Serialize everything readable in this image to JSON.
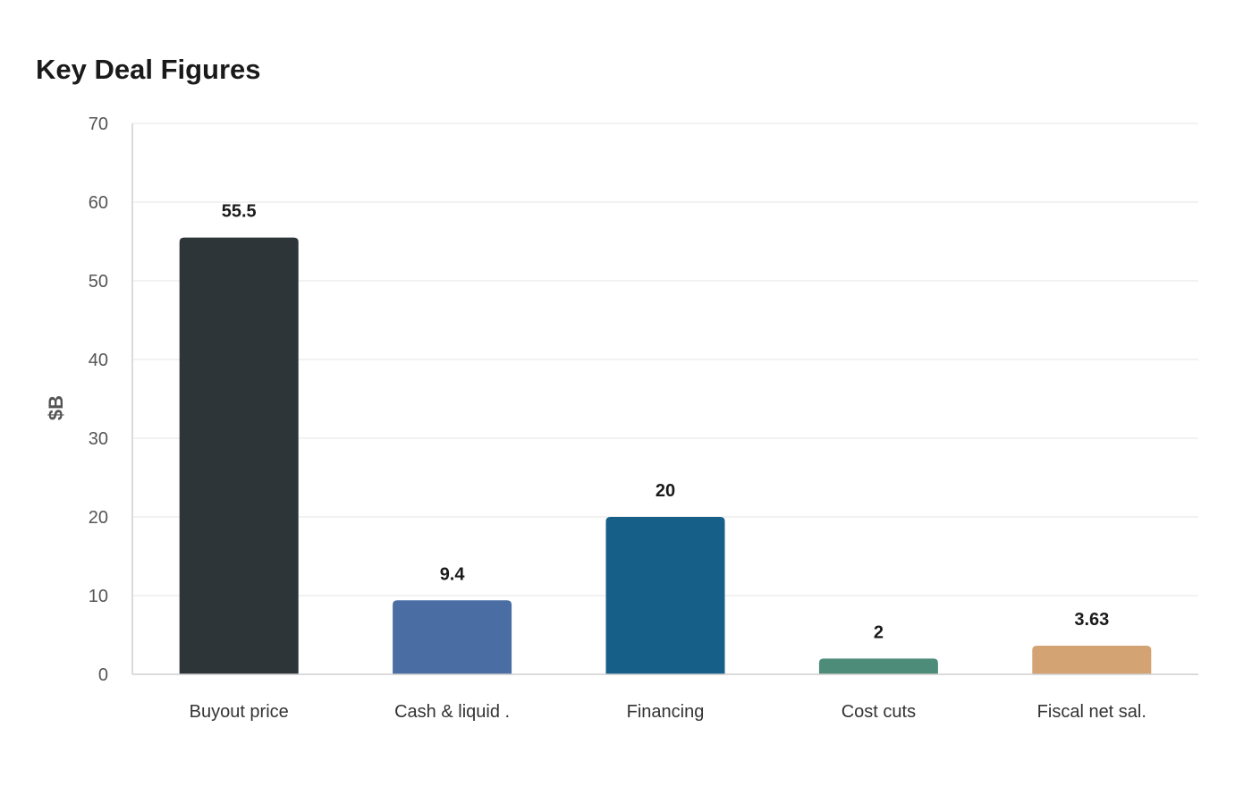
{
  "chart_data": {
    "type": "bar",
    "title": "Key Deal Figures",
    "xlabel": "",
    "ylabel": "$B",
    "ylim": [
      0,
      70
    ],
    "yticks": [
      0,
      10,
      20,
      30,
      40,
      50,
      60,
      70
    ],
    "categories": [
      "Buyout price",
      "Cash & liquid .",
      "Financing",
      "Cost cuts",
      "Fiscal net sal."
    ],
    "values": [
      55.5,
      9.4,
      20,
      2,
      3.63
    ],
    "value_labels": [
      "55.5",
      "9.4",
      "20",
      "2",
      "3.63"
    ],
    "colors": [
      "#2e3538",
      "#4a6ea3",
      "#165f88",
      "#4e8c7a",
      "#d4a373"
    ],
    "grid": true,
    "legend": "none"
  }
}
